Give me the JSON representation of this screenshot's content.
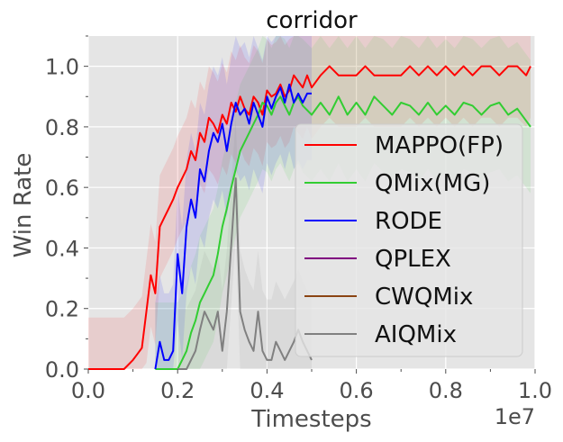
{
  "chart_data": {
    "type": "line",
    "title": "corridor",
    "xlabel": "Timesteps",
    "ylabel": "Win Rate",
    "x_multiplier_label": "1e7",
    "xlim": [
      0,
      1.0
    ],
    "ylim": [
      0,
      1.1
    ],
    "xticks": [
      "0.0",
      "0.2",
      "0.4",
      "0.6",
      "0.8",
      "1.0"
    ],
    "yticks": [
      "0.0",
      "0.2",
      "0.4",
      "0.6",
      "0.8",
      "1.0"
    ],
    "xtick_values": [
      0,
      0.2,
      0.4,
      0.6,
      0.8,
      1.0
    ],
    "ytick_values": [
      0,
      0.2,
      0.4,
      0.6,
      0.8,
      1.0
    ],
    "grid": true,
    "background": "#e5e5e5",
    "legend_position": "lower-right",
    "series": [
      {
        "name": "MAPPO(FP)",
        "color": "#ff0000",
        "x": [
          0.0,
          0.04,
          0.08,
          0.1,
          0.11,
          0.12,
          0.13,
          0.14,
          0.15,
          0.16,
          0.17,
          0.18,
          0.19,
          0.2,
          0.21,
          0.22,
          0.23,
          0.24,
          0.25,
          0.26,
          0.27,
          0.28,
          0.29,
          0.3,
          0.31,
          0.32,
          0.33,
          0.34,
          0.35,
          0.36,
          0.37,
          0.38,
          0.39,
          0.4,
          0.41,
          0.42,
          0.43,
          0.44,
          0.45,
          0.46,
          0.47,
          0.48,
          0.49,
          0.5,
          0.52,
          0.54,
          0.56,
          0.58,
          0.6,
          0.62,
          0.64,
          0.66,
          0.68,
          0.7,
          0.72,
          0.74,
          0.76,
          0.78,
          0.8,
          0.82,
          0.84,
          0.86,
          0.88,
          0.9,
          0.92,
          0.94,
          0.96,
          0.98,
          0.99
        ],
        "y": [
          0.0,
          0.0,
          0.0,
          0.03,
          0.05,
          0.07,
          0.19,
          0.31,
          0.25,
          0.47,
          0.5,
          0.53,
          0.56,
          0.6,
          0.63,
          0.66,
          0.72,
          0.69,
          0.78,
          0.75,
          0.83,
          0.81,
          0.78,
          0.84,
          0.81,
          0.88,
          0.85,
          0.9,
          0.86,
          0.84,
          0.9,
          0.88,
          0.84,
          0.92,
          0.9,
          0.91,
          0.94,
          0.9,
          0.92,
          0.97,
          0.95,
          0.93,
          0.97,
          0.93,
          0.97,
          1.0,
          0.97,
          0.97,
          0.97,
          1.0,
          0.97,
          0.97,
          0.97,
          0.97,
          1.0,
          0.97,
          1.0,
          0.97,
          1.0,
          0.97,
          1.0,
          0.97,
          1.0,
          1.0,
          0.97,
          1.0,
          1.0,
          0.97,
          1.0
        ]
      },
      {
        "name": "QMix(MG)",
        "color": "#32cd32",
        "x": [
          0.15,
          0.17,
          0.19,
          0.2,
          0.21,
          0.22,
          0.23,
          0.24,
          0.25,
          0.26,
          0.27,
          0.28,
          0.29,
          0.3,
          0.31,
          0.32,
          0.33,
          0.34,
          0.35,
          0.36,
          0.37,
          0.38,
          0.39,
          0.4,
          0.41,
          0.42,
          0.43,
          0.44,
          0.45,
          0.46,
          0.47,
          0.48,
          0.5,
          0.52,
          0.54,
          0.56,
          0.58,
          0.6,
          0.62,
          0.64,
          0.66,
          0.68,
          0.7,
          0.72,
          0.74,
          0.76,
          0.78,
          0.8,
          0.82,
          0.84,
          0.86,
          0.88,
          0.9,
          0.92,
          0.94,
          0.96,
          0.98,
          0.99
        ],
        "y": [
          0.0,
          0.0,
          0.0,
          0.0,
          0.03,
          0.06,
          0.12,
          0.16,
          0.22,
          0.25,
          0.28,
          0.31,
          0.38,
          0.47,
          0.53,
          0.6,
          0.66,
          0.72,
          0.75,
          0.78,
          0.81,
          0.84,
          0.88,
          0.87,
          0.84,
          0.88,
          0.9,
          0.87,
          0.84,
          0.88,
          0.9,
          0.87,
          0.84,
          0.88,
          0.84,
          0.9,
          0.84,
          0.88,
          0.84,
          0.9,
          0.87,
          0.84,
          0.88,
          0.87,
          0.84,
          0.88,
          0.84,
          0.87,
          0.84,
          0.88,
          0.87,
          0.84,
          0.87,
          0.88,
          0.84,
          0.86,
          0.82,
          0.8
        ]
      },
      {
        "name": "RODE",
        "color": "#0000ff",
        "x": [
          0.15,
          0.16,
          0.17,
          0.18,
          0.19,
          0.2,
          0.21,
          0.22,
          0.23,
          0.24,
          0.25,
          0.26,
          0.27,
          0.28,
          0.29,
          0.3,
          0.31,
          0.32,
          0.33,
          0.34,
          0.35,
          0.36,
          0.37,
          0.38,
          0.39,
          0.4,
          0.41,
          0.42,
          0.43,
          0.44,
          0.45,
          0.46,
          0.47,
          0.48,
          0.49,
          0.5
        ],
        "y": [
          0.0,
          0.09,
          0.03,
          0.03,
          0.06,
          0.38,
          0.25,
          0.47,
          0.56,
          0.5,
          0.66,
          0.62,
          0.72,
          0.78,
          0.75,
          0.81,
          0.72,
          0.81,
          0.88,
          0.84,
          0.86,
          0.81,
          0.88,
          0.84,
          0.8,
          0.9,
          0.86,
          0.9,
          0.93,
          0.88,
          0.94,
          0.88,
          0.91,
          0.88,
          0.91,
          0.91
        ]
      },
      {
        "name": "QPLEX",
        "color": "#800080",
        "x": [],
        "y": []
      },
      {
        "name": "CWQMix",
        "color": "#8b4513",
        "x": [],
        "y": []
      },
      {
        "name": "AIQMix",
        "color": "#808080",
        "x": [
          0.2,
          0.22,
          0.24,
          0.25,
          0.26,
          0.27,
          0.28,
          0.29,
          0.3,
          0.31,
          0.32,
          0.33,
          0.34,
          0.35,
          0.36,
          0.37,
          0.38,
          0.39,
          0.4,
          0.41,
          0.42,
          0.43,
          0.44,
          0.45,
          0.46,
          0.47,
          0.48,
          0.49,
          0.5
        ],
        "y": [
          0.0,
          0.0,
          0.06,
          0.13,
          0.19,
          0.16,
          0.13,
          0.19,
          0.06,
          0.19,
          0.41,
          0.63,
          0.19,
          0.13,
          0.09,
          0.06,
          0.19,
          0.06,
          0.03,
          0.03,
          0.09,
          0.06,
          0.03,
          0.06,
          0.09,
          0.13,
          0.09,
          0.06,
          0.03
        ]
      }
    ]
  }
}
